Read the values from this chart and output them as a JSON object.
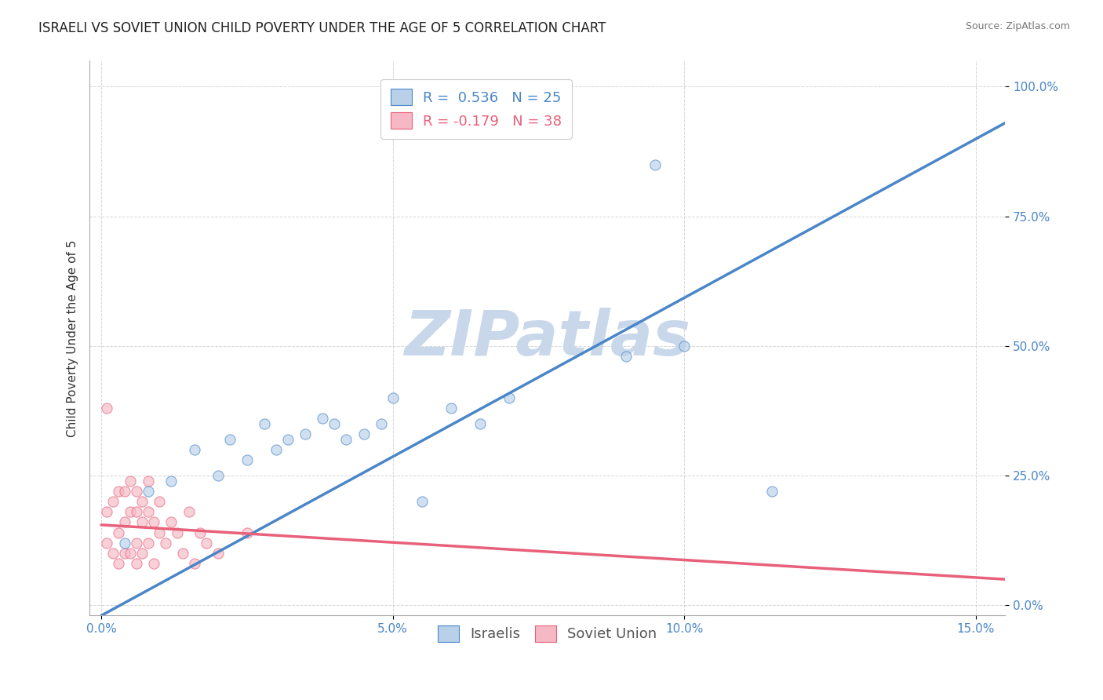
{
  "title": "ISRAELI VS SOVIET UNION CHILD POVERTY UNDER THE AGE OF 5 CORRELATION CHART",
  "source": "Source: ZipAtlas.com",
  "ylabel": "Child Poverty Under the Age of 5",
  "xlim": [
    -0.002,
    0.155
  ],
  "ylim": [
    -0.02,
    1.05
  ],
  "xticks": [
    0.0,
    0.05,
    0.1,
    0.15
  ],
  "yticks": [
    0.0,
    0.25,
    0.5,
    0.75,
    1.0
  ],
  "xticklabels": [
    "0.0%",
    "5.0%",
    "10.0%",
    "15.0%"
  ],
  "yticklabels": [
    "0.0%",
    "25.0%",
    "50.0%",
    "75.0%",
    "100.0%"
  ],
  "watermark": "ZIPatlas",
  "legend_R_blue": "R =  0.536",
  "legend_N_blue": "N = 25",
  "legend_R_pink": "R = -0.179",
  "legend_N_pink": "N = 38",
  "blue_color": "#b8d0e8",
  "pink_color": "#f5b8c4",
  "blue_line_color": "#4a86c8",
  "pink_line_color": "#e8607a",
  "israelis_x": [
    0.004,
    0.008,
    0.012,
    0.016,
    0.02,
    0.022,
    0.025,
    0.028,
    0.03,
    0.032,
    0.035,
    0.038,
    0.04,
    0.042,
    0.045,
    0.048,
    0.05,
    0.055,
    0.06,
    0.065,
    0.07,
    0.09,
    0.095,
    0.1,
    0.115
  ],
  "israelis_y": [
    0.12,
    0.22,
    0.24,
    0.3,
    0.25,
    0.32,
    0.28,
    0.35,
    0.3,
    0.32,
    0.33,
    0.36,
    0.35,
    0.32,
    0.33,
    0.35,
    0.4,
    0.2,
    0.38,
    0.35,
    0.4,
    0.48,
    0.85,
    0.5,
    0.22
  ],
  "soviet_x": [
    0.001,
    0.001,
    0.002,
    0.002,
    0.003,
    0.003,
    0.003,
    0.004,
    0.004,
    0.004,
    0.005,
    0.005,
    0.005,
    0.006,
    0.006,
    0.006,
    0.006,
    0.007,
    0.007,
    0.007,
    0.008,
    0.008,
    0.008,
    0.009,
    0.009,
    0.01,
    0.01,
    0.011,
    0.012,
    0.013,
    0.014,
    0.015,
    0.016,
    0.017,
    0.018,
    0.02,
    0.025,
    0.001
  ],
  "soviet_y": [
    0.12,
    0.18,
    0.1,
    0.2,
    0.08,
    0.14,
    0.22,
    0.1,
    0.16,
    0.22,
    0.1,
    0.18,
    0.24,
    0.08,
    0.12,
    0.18,
    0.22,
    0.1,
    0.16,
    0.2,
    0.12,
    0.18,
    0.24,
    0.08,
    0.16,
    0.14,
    0.2,
    0.12,
    0.16,
    0.14,
    0.1,
    0.18,
    0.08,
    0.14,
    0.12,
    0.1,
    0.14,
    0.38
  ],
  "blue_line_x0": 0.0,
  "blue_line_y0": -0.02,
  "blue_line_x1": 0.155,
  "blue_line_y1": 0.93,
  "pink_line_x0": 0.0,
  "pink_line_y0": 0.155,
  "pink_line_x1": 0.155,
  "pink_line_y1": 0.05,
  "background_color": "#ffffff",
  "grid_color": "#cccccc",
  "title_fontsize": 12,
  "axis_fontsize": 11,
  "tick_fontsize": 11,
  "legend_fontsize": 13,
  "watermark_fontsize": 58,
  "watermark_color": "#c8d8ea",
  "dot_size": 90,
  "dot_alpha": 0.65
}
